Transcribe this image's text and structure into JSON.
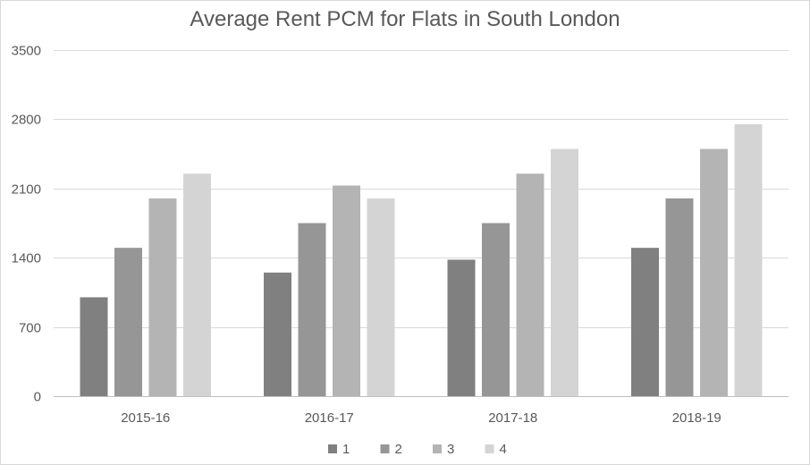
{
  "chart_data": {
    "type": "bar",
    "title": "Average Rent PCM for Flats in South London",
    "categories": [
      "2015-16",
      "2016-17",
      "2017-18",
      "2018-19"
    ],
    "series": [
      {
        "name": "1",
        "color": "#808080",
        "values": [
          1000,
          1250,
          1380,
          1500
        ]
      },
      {
        "name": "2",
        "color": "#969696",
        "values": [
          1500,
          1750,
          1750,
          2000
        ]
      },
      {
        "name": "3",
        "color": "#b4b4b4",
        "values": [
          2000,
          2130,
          2250,
          2500
        ]
      },
      {
        "name": "4",
        "color": "#d4d4d4",
        "values": [
          2250,
          2000,
          2500,
          2750
        ]
      }
    ],
    "ylim": [
      0,
      3500
    ],
    "yticks": [
      "0",
      "700",
      "1400",
      "2100",
      "2800",
      "3500"
    ],
    "grid": true,
    "legend_position": "bottom"
  }
}
